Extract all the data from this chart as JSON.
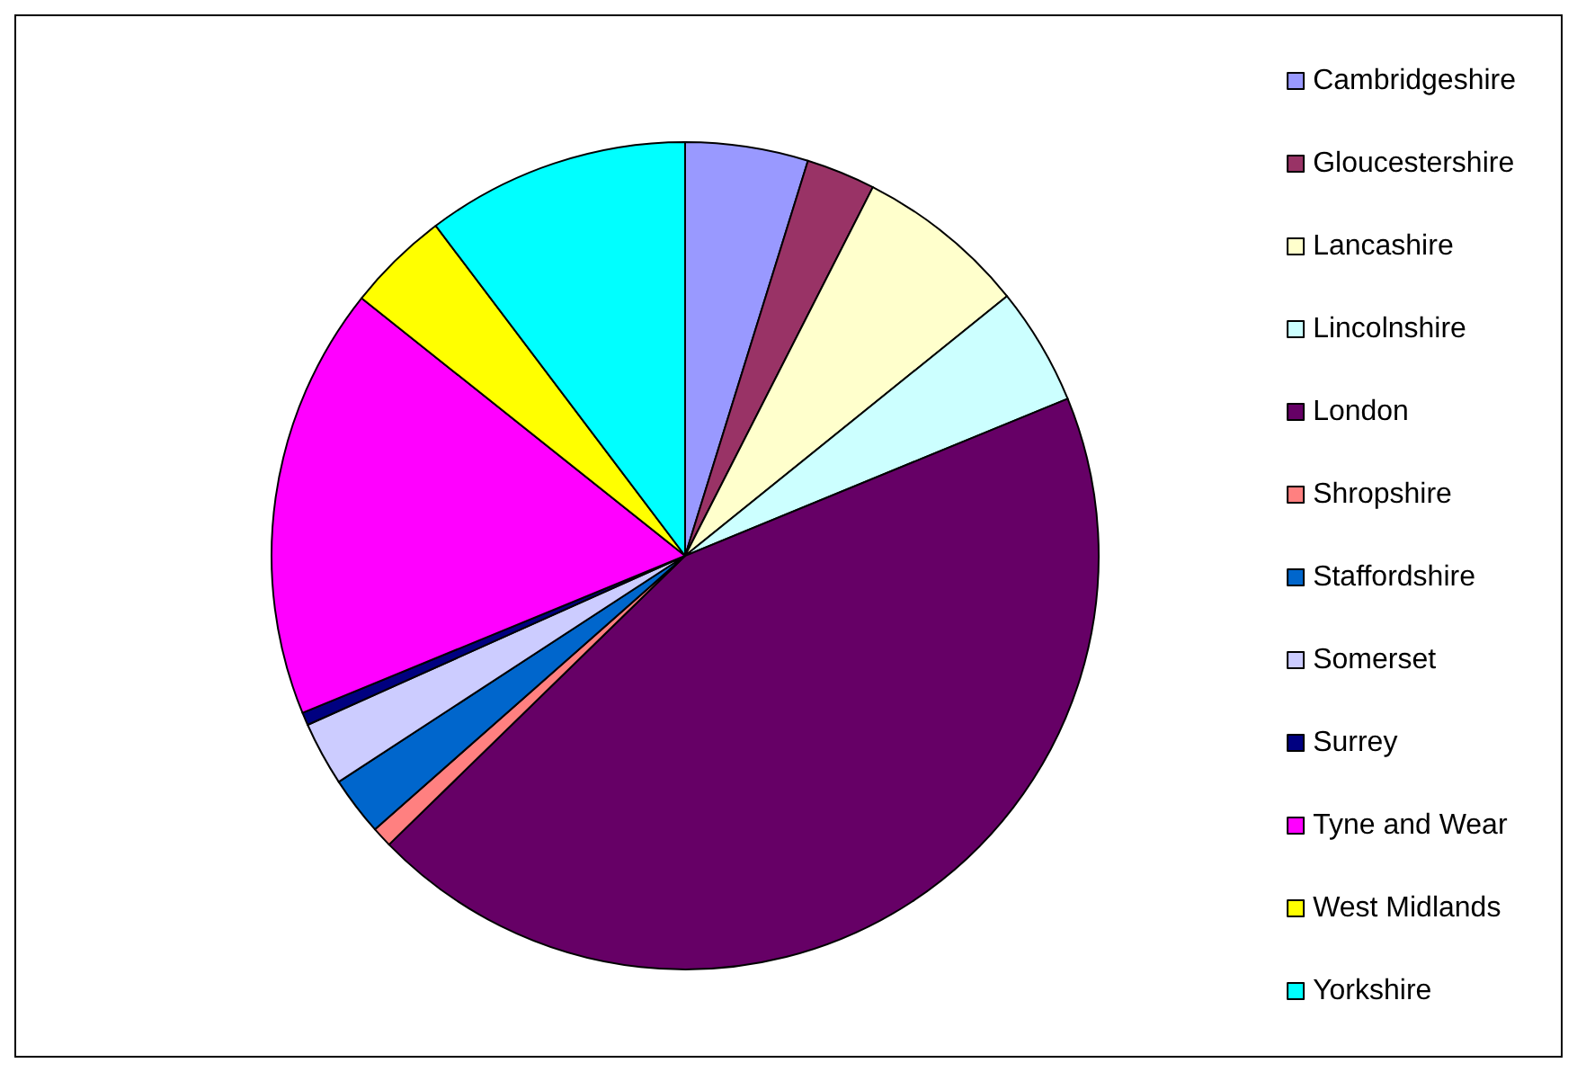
{
  "chart_data": {
    "type": "pie",
    "categories": [
      "Cambridgeshire",
      "Gloucestershire",
      "Lancashire",
      "Lincolnshire",
      "London",
      "Shropshire",
      "Staffordshire",
      "Somerset",
      "Surrey",
      "Tyne and Wear",
      "West Midlands",
      "Yorkshire"
    ],
    "values": [
      4.8,
      2.7,
      6.7,
      4.6,
      43.9,
      0.8,
      2.3,
      2.5,
      0.5,
      16.9,
      4.0,
      10.3
    ],
    "colors": [
      "#9999ff",
      "#993366",
      "#ffffcc",
      "#ccffff",
      "#660066",
      "#ff8080",
      "#0066cc",
      "#ccccff",
      "#000080",
      "#ff00ff",
      "#ffff00",
      "#00ffff"
    ],
    "legend": "right"
  }
}
